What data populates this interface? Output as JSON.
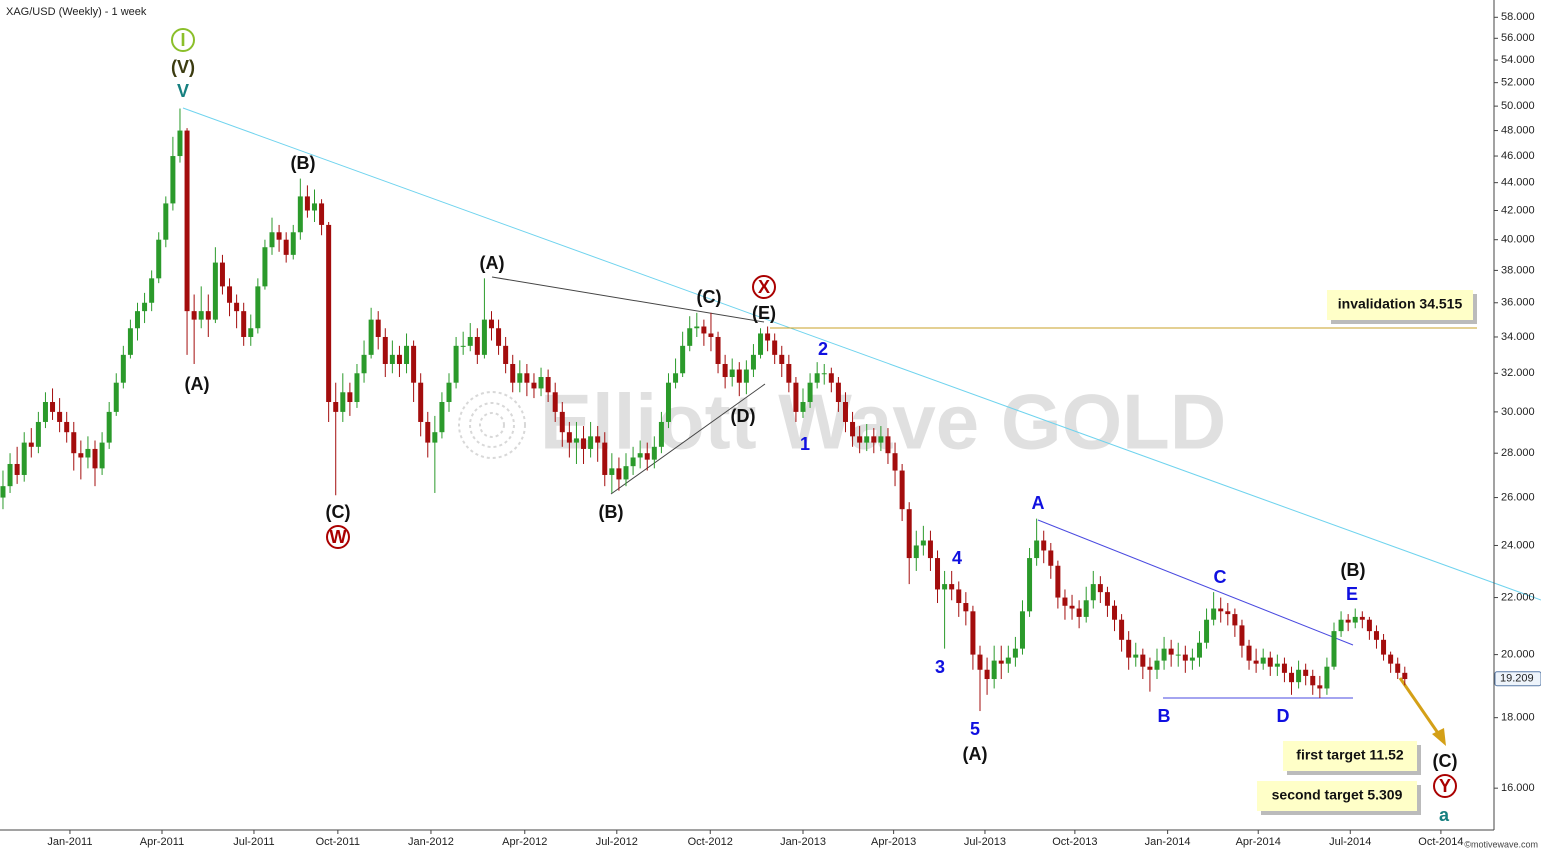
{
  "chart_data": {
    "type": "candlestick",
    "title": "XAG/USD (Weekly) - 1 week",
    "watermark": "Elliott Wave GOLD",
    "credit": "©motivewave.com",
    "log_scale": true,
    "up_color": "#2b9a2b",
    "down_color": "#a30d0d",
    "first_open": 26,
    "close": [
      26.5,
      27.5,
      27,
      28.5,
      28.3,
      29.5,
      30.5,
      30,
      29.5,
      29,
      28,
      27.8,
      28.2,
      27.3,
      28.5,
      30,
      31.5,
      33,
      34.5,
      35.5,
      36,
      37.5,
      40,
      42.5,
      46,
      48,
      35.5,
      35,
      35.5,
      35,
      38.5,
      37,
      36,
      35.5,
      34,
      34.5,
      37,
      39.5,
      40.5,
      40,
      39,
      40.5,
      43,
      42,
      42.5,
      41,
      30.5,
      30,
      31,
      30.5,
      32,
      33,
      35,
      34,
      32.5,
      33,
      32.5,
      33.5,
      31.5,
      29.5,
      28.5,
      29,
      30.5,
      31.5,
      33.5,
      33.5,
      34,
      33,
      35,
      34.5,
      33.5,
      32.5,
      31.5,
      32,
      31.5,
      31.2,
      31.8,
      31,
      30,
      29,
      28.5,
      28.7,
      28.2,
      28.8,
      28.5,
      27,
      27.3,
      26.8,
      27.4,
      27.8,
      28,
      27.7,
      28.3,
      29.5,
      31.5,
      32,
      33.5,
      34.5,
      34.6,
      34.2,
      34,
      32.5,
      31.8,
      32.2,
      31.5,
      32.2,
      33,
      34.2,
      33.8,
      33,
      32.5,
      31.5,
      30,
      30.5,
      31.5,
      32,
      32,
      31.5,
      30.5,
      29.5,
      28.8,
      28.5,
      28.8,
      28.5,
      28.8,
      28,
      27.2,
      25.5,
      23.5,
      24,
      24.2,
      23.5,
      22.3,
      22.5,
      22.3,
      21.8,
      21.5,
      20,
      19.5,
      19.2,
      19.8,
      19.7,
      19.9,
      20.2,
      21.5,
      23.5,
      24.2,
      23.8,
      23.2,
      22,
      21.7,
      21.6,
      21.3,
      21.9,
      22.5,
      22.2,
      21.7,
      21.2,
      20.5,
      19.9,
      20,
      19.6,
      19.5,
      19.8,
      20.2,
      20,
      20,
      19.8,
      19.9,
      20.4,
      21.2,
      21.6,
      21.5,
      21.4,
      21,
      20.3,
      19.8,
      19.7,
      19.9,
      19.6,
      19.7,
      19.4,
      19.1,
      19.5,
      19.3,
      19,
      18.9,
      19.6,
      20.8,
      21.2,
      21.1,
      21.3,
      21.2,
      20.8,
      20.5,
      20,
      19.7,
      19.4,
      19.2
    ],
    "high": [
      27.2,
      28,
      28.3,
      29,
      29.2,
      30,
      31,
      31.2,
      30.7,
      30,
      29.5,
      28.6,
      28.8,
      28.6,
      29,
      30.5,
      32,
      33.5,
      35,
      36,
      36.6,
      38,
      40.5,
      43,
      47.5,
      49.8,
      48.2,
      36.5,
      37,
      36.5,
      39.5,
      39,
      37.5,
      36.5,
      36,
      35.3,
      37.5,
      40,
      41.5,
      41,
      40.5,
      41,
      44.3,
      43.8,
      43.5,
      42.8,
      41.2,
      31.5,
      32,
      31.5,
      32.5,
      33.8,
      35.7,
      35.5,
      34.5,
      33.8,
      33.5,
      34.2,
      33.8,
      32,
      30,
      29.8,
      31,
      32,
      34,
      34.3,
      34.8,
      34.5,
      37.5,
      35.5,
      35,
      34,
      33,
      32.7,
      32.5,
      32,
      32.3,
      32.2,
      31.5,
      30.5,
      29.5,
      29.5,
      29.3,
      29.5,
      29.3,
      29,
      28,
      27.8,
      28,
      28.3,
      28.6,
      28.5,
      28.8,
      30,
      32,
      32.8,
      34.3,
      35.2,
      35.4,
      35,
      35.4,
      34.3,
      33,
      32.8,
      32.6,
      32.7,
      33.6,
      34.5,
      34.6,
      34.2,
      33.5,
      33,
      31.8,
      31.2,
      32,
      32.6,
      32.5,
      32.3,
      31.8,
      31,
      30,
      29.3,
      29.4,
      29.2,
      29.3,
      29.2,
      28.5,
      27.5,
      25.8,
      24.6,
      24.8,
      24.6,
      23.8,
      23,
      23,
      22.6,
      22.2,
      21.7,
      20.3,
      19.9,
      20.3,
      20.3,
      20.3,
      20.6,
      21.9,
      23.9,
      25.1,
      24.6,
      24.1,
      23.4,
      22.3,
      22.1,
      21.9,
      22.4,
      23,
      22.8,
      22.4,
      21.9,
      21.4,
      20.8,
      20.4,
      20.2,
      19.9,
      20.2,
      20.6,
      20.5,
      20.4,
      20.3,
      20.2,
      20.8,
      21.6,
      22.2,
      22,
      21.8,
      21.6,
      21.2,
      20.5,
      20.2,
      20.2,
      20.1,
      20,
      19.9,
      19.6,
      19.8,
      19.7,
      19.5,
      19.3,
      19.9,
      21.1,
      21.5,
      21.4,
      21.6,
      21.5,
      21.3,
      21,
      20.7,
      20.1,
      19.9,
      19.6
    ],
    "low": [
      25.5,
      26.2,
      26.6,
      26.7,
      27.8,
      28,
      29.2,
      29.6,
      29,
      28.5,
      27.2,
      26.8,
      27.3,
      26.5,
      27,
      28.2,
      29.8,
      31.2,
      32.8,
      33.8,
      34.8,
      35.5,
      37.2,
      39.5,
      42,
      45.5,
      33,
      32.5,
      34.5,
      34,
      34.8,
      36.5,
      35.2,
      34.5,
      33.5,
      33.5,
      34.2,
      36.8,
      39,
      39.2,
      38.5,
      38.7,
      40,
      41.5,
      41.2,
      40.3,
      29.5,
      26.1,
      29.5,
      29.8,
      30.2,
      31.5,
      32.8,
      33.3,
      31.8,
      32,
      31.8,
      32,
      30.5,
      28.8,
      27.8,
      26.2,
      28.7,
      30,
      31.2,
      33,
      33.2,
      32.5,
      32.8,
      33.8,
      33,
      32,
      31,
      31,
      30.8,
      30.7,
      30.8,
      30.5,
      29.5,
      28.3,
      27.8,
      27.5,
      27.5,
      27.8,
      27.6,
      26.5,
      26.2,
      26.3,
      26.5,
      27,
      27.3,
      27.2,
      27.3,
      28,
      29.2,
      31.2,
      31.8,
      33.2,
      34,
      33.5,
      33.2,
      32,
      31.2,
      31.3,
      30.8,
      30.9,
      31.8,
      32.8,
      33.2,
      32.5,
      31.8,
      31,
      29.5,
      29.7,
      30.2,
      31.2,
      31.4,
      31,
      30,
      29,
      28.3,
      28,
      28.1,
      28,
      28.1,
      27.5,
      26.5,
      25,
      22.5,
      23,
      23.6,
      23,
      21.8,
      20.2,
      21.9,
      21.3,
      21,
      19.5,
      18.2,
      18.7,
      18.9,
      19.2,
      19.4,
      19.6,
      20,
      21.3,
      23.2,
      23.3,
      22.7,
      21.6,
      21.2,
      21.2,
      20.9,
      21.1,
      21.6,
      21.8,
      21.3,
      20.8,
      20.1,
      19.5,
      19.6,
      19.2,
      18.8,
      19.2,
      19.5,
      19.6,
      19.6,
      19.4,
      19.5,
      19.6,
      20.2,
      21,
      21.1,
      21,
      20.6,
      19.9,
      19.5,
      19.4,
      19.5,
      19.3,
      19.3,
      19.1,
      18.7,
      18.9,
      19,
      18.7,
      18.6,
      18.7,
      19.5,
      20.6,
      20.8,
      20.9,
      20.9,
      20.5,
      20.2,
      19.8,
      19.4,
      19.2,
      19
    ],
    "xlim": [
      -0.42,
      210.6
    ],
    "xticks": [
      {
        "value": 9.46,
        "label": "Jan-2011"
      },
      {
        "value": 22.46,
        "label": "Apr-2011"
      },
      {
        "value": 35.45,
        "label": "Jul-2011"
      },
      {
        "value": 47.3,
        "label": "Oct-2011"
      },
      {
        "value": 60.45,
        "label": "Jan-2012"
      },
      {
        "value": 73.7,
        "label": "Apr-2012"
      },
      {
        "value": 86.7,
        "label": "Jul-2012"
      },
      {
        "value": 99.9,
        "label": "Oct-2012"
      },
      {
        "value": 113,
        "label": "Jan-2013"
      },
      {
        "value": 125.8,
        "label": "Apr-2013"
      },
      {
        "value": 138.7,
        "label": "Jul-2013"
      },
      {
        "value": 151.4,
        "label": "Oct-2013"
      },
      {
        "value": 164.5,
        "label": "Jan-2014"
      },
      {
        "value": 177.3,
        "label": "Apr-2014"
      },
      {
        "value": 190.3,
        "label": "Jul-2014"
      },
      {
        "value": 203.1,
        "label": "Oct-2014"
      }
    ],
    "ylim": [
      14.92,
      59.7
    ],
    "yticks": [
      {
        "value": 16,
        "label": "16.000"
      },
      {
        "value": 18,
        "label": "18.000"
      },
      {
        "value": 20,
        "label": "20.000"
      },
      {
        "value": 22,
        "label": "22.000"
      },
      {
        "value": 24,
        "label": "24.000"
      },
      {
        "value": 26,
        "label": "26.000"
      },
      {
        "value": 28,
        "label": "28.000"
      },
      {
        "value": 30,
        "label": "30.000"
      },
      {
        "value": 32,
        "label": "32.000"
      },
      {
        "value": 34,
        "label": "34.000"
      },
      {
        "value": 36,
        "label": "36.000"
      },
      {
        "value": 38,
        "label": "38.000"
      },
      {
        "value": 40,
        "label": "40.000"
      },
      {
        "value": 42,
        "label": "42.000"
      },
      {
        "value": 44,
        "label": "44.000"
      },
      {
        "value": 46,
        "label": "46.000"
      },
      {
        "value": 48,
        "label": "48.000"
      },
      {
        "value": 50,
        "label": "50.000"
      },
      {
        "value": 52,
        "label": "52.000"
      },
      {
        "value": 54,
        "label": "54.000"
      },
      {
        "value": 56,
        "label": "56.000"
      },
      {
        "value": 58,
        "label": "58.000"
      }
    ],
    "last_price": 19.209,
    "invalidation": {
      "label": "invalidation 34.515",
      "value": 34.515
    },
    "targets": [
      "first target 11.52",
      "second target 5.309"
    ],
    "annotations": [
      "I",
      "(V)",
      "V",
      "(B)",
      "(A)",
      "(C)",
      "W",
      "(A)",
      "(C)",
      "X",
      "(E)",
      "(D)",
      "(B)",
      "2",
      "1",
      "4",
      "3",
      "5",
      "(A)",
      "A",
      "C",
      "B",
      "D",
      "(B)",
      "E",
      "(C)",
      "Y",
      "a"
    ]
  }
}
